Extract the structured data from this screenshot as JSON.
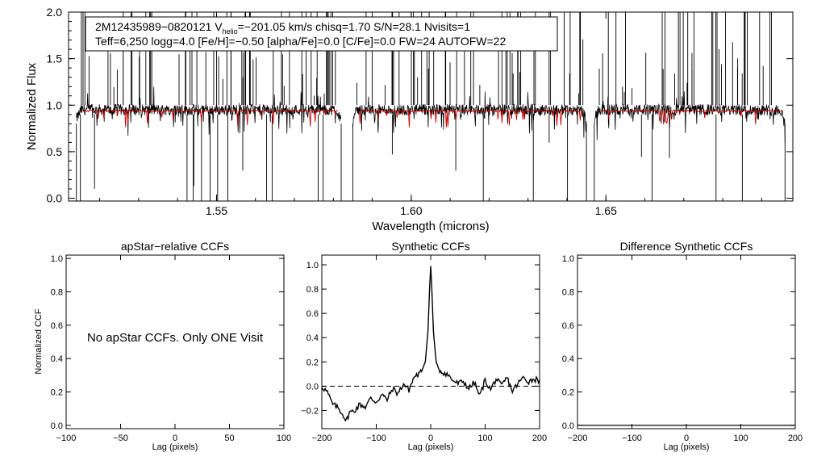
{
  "spectrum": {
    "info_line1": "2M12435989−0820121  V",
    "info_sub": "helio",
    "info_line1b": "=−201.05 km/s  chisq=1.70  S/N=28.1  Nvisits=1",
    "info_line2": "Teff=6,250 logg=4.0 [Fe/H]=−0.50 [alpha/Fe]=0.0 [C/Fe]=0.0 FW=24 AUTOFW=22",
    "xlabel": "Wavelength (microns)",
    "ylabel": "Normalized Flux",
    "xlim": [
      1.512,
      1.698
    ],
    "ylim": [
      -0.03,
      2.0
    ],
    "xticks": [
      {
        "v": 1.55,
        "label": "1.55"
      },
      {
        "v": 1.6,
        "label": "1.60"
      },
      {
        "v": 1.65,
        "label": "1.65"
      }
    ],
    "yticks": [
      {
        "v": 0.0,
        "label": "0.0"
      },
      {
        "v": 0.5,
        "label": "0.5"
      },
      {
        "v": 1.0,
        "label": "1.0"
      },
      {
        "v": 1.5,
        "label": "1.5"
      },
      {
        "v": 2.0,
        "label": "2.0"
      }
    ],
    "colors": {
      "observed": "#000000",
      "model": "#cc0000"
    }
  },
  "chart_data": [
    {
      "type": "line",
      "title": "",
      "xlabel": "Wavelength (microns)",
      "ylabel": "Normalized Flux",
      "xlim": [
        1.512,
        1.698
      ],
      "ylim": [
        -0.03,
        2.0
      ],
      "chips": [
        [
          1.514,
          1.582
        ],
        [
          1.585,
          1.645
        ],
        [
          1.647,
          1.696
        ]
      ],
      "continuum_level": 0.95,
      "series": [
        {
          "name": "observed spectrum",
          "x": [
            1.514,
            1.53,
            1.55,
            1.57,
            1.582,
            1.585,
            1.6,
            1.62,
            1.645,
            1.647,
            1.66,
            1.68,
            1.696
          ],
          "values": [
            0.85,
            0.93,
            0.95,
            0.96,
            0.95,
            0.93,
            0.94,
            0.95,
            0.92,
            0.95,
            0.96,
            0.95,
            0.85
          ]
        },
        {
          "name": "synthetic model",
          "x": [
            1.52,
            1.55,
            1.58,
            1.59,
            1.62,
            1.644,
            1.65,
            1.68,
            1.695
          ],
          "values": [
            0.95,
            0.95,
            0.95,
            0.94,
            0.94,
            0.94,
            0.93,
            0.93,
            0.93
          ]
        }
      ]
    },
    {
      "type": "line",
      "title": "apStar−relative CCFs",
      "xlabel": "Lag (pixels)",
      "ylabel": "Normalized CCF",
      "xlim": [
        -100,
        100
      ],
      "ylim": [
        -0.02,
        1.02
      ],
      "xticks": [
        -100,
        -50,
        0,
        50,
        100
      ],
      "xticklabels": [
        "−100",
        "−50",
        "0",
        "50",
        "100"
      ],
      "yticks": [
        0.0,
        0.2,
        0.4,
        0.6,
        0.8,
        1.0
      ],
      "yticklabels": [
        "0.0",
        "0.2",
        "0.4",
        "0.6",
        "0.8",
        "1.0"
      ],
      "annotation": "No apStar CCFs.  Only ONE Visit",
      "series": []
    },
    {
      "type": "line",
      "title": "Synthetic CCFs",
      "xlabel": "Lag (pixels)",
      "ylabel": "",
      "xlim": [
        -200,
        200
      ],
      "ylim": [
        -0.35,
        1.08
      ],
      "xticks": [
        -200,
        -100,
        0,
        100,
        200
      ],
      "xticklabels": [
        "−200",
        "−100",
        "0",
        "100",
        "200"
      ],
      "yticks": [
        -0.2,
        0.0,
        0.2,
        0.4,
        0.6,
        0.8,
        1.0
      ],
      "yticklabels": [
        "−0.2",
        "0.0",
        "0.2",
        "0.4",
        "0.6",
        "0.8",
        "1.0"
      ],
      "reference_line": 0.0,
      "series": [
        {
          "name": "synthetic CCF",
          "x": [
            -200,
            -190,
            -180,
            -170,
            -160,
            -155,
            -150,
            -140,
            -130,
            -120,
            -110,
            -100,
            -90,
            -80,
            -70,
            -60,
            -50,
            -40,
            -30,
            -20,
            -15,
            -10,
            -5,
            -2,
            0,
            2,
            5,
            10,
            15,
            20,
            30,
            40,
            50,
            60,
            70,
            80,
            90,
            100,
            110,
            120,
            130,
            140,
            150,
            160,
            170,
            180,
            190,
            200
          ],
          "values": [
            0.0,
            -0.05,
            -0.15,
            -0.18,
            -0.24,
            -0.29,
            -0.22,
            -0.2,
            -0.15,
            -0.17,
            -0.1,
            -0.13,
            -0.07,
            -0.11,
            -0.02,
            -0.06,
            0.02,
            -0.03,
            0.08,
            0.1,
            0.14,
            0.2,
            0.45,
            0.8,
            0.99,
            0.8,
            0.45,
            0.2,
            0.14,
            0.12,
            0.1,
            0.05,
            0.02,
            0.04,
            -0.02,
            0.03,
            -0.08,
            0.05,
            -0.03,
            0.06,
            0.0,
            0.07,
            -0.04,
            0.02,
            0.07,
            0.04,
            0.06,
            0.05
          ]
        }
      ]
    },
    {
      "type": "line",
      "title": "Difference Synthetic CCFs",
      "xlabel": "Lag (pixels)",
      "ylabel": "",
      "xlim": [
        -200,
        200
      ],
      "ylim": [
        -0.02,
        1.02
      ],
      "xticks": [
        -200,
        -100,
        0,
        100,
        200
      ],
      "xticklabels": [
        "−200",
        "−100",
        "0",
        "100",
        "200"
      ],
      "yticks": [
        0.0,
        0.2,
        0.4,
        0.6,
        0.8,
        1.0
      ],
      "yticklabels": [
        "0.0",
        "0.2",
        "0.4",
        "0.6",
        "0.8",
        "1.0"
      ],
      "series": [
        {
          "name": "difference CCF",
          "x": [
            -200,
            200
          ],
          "values": [
            0.0,
            0.0
          ]
        }
      ]
    }
  ]
}
